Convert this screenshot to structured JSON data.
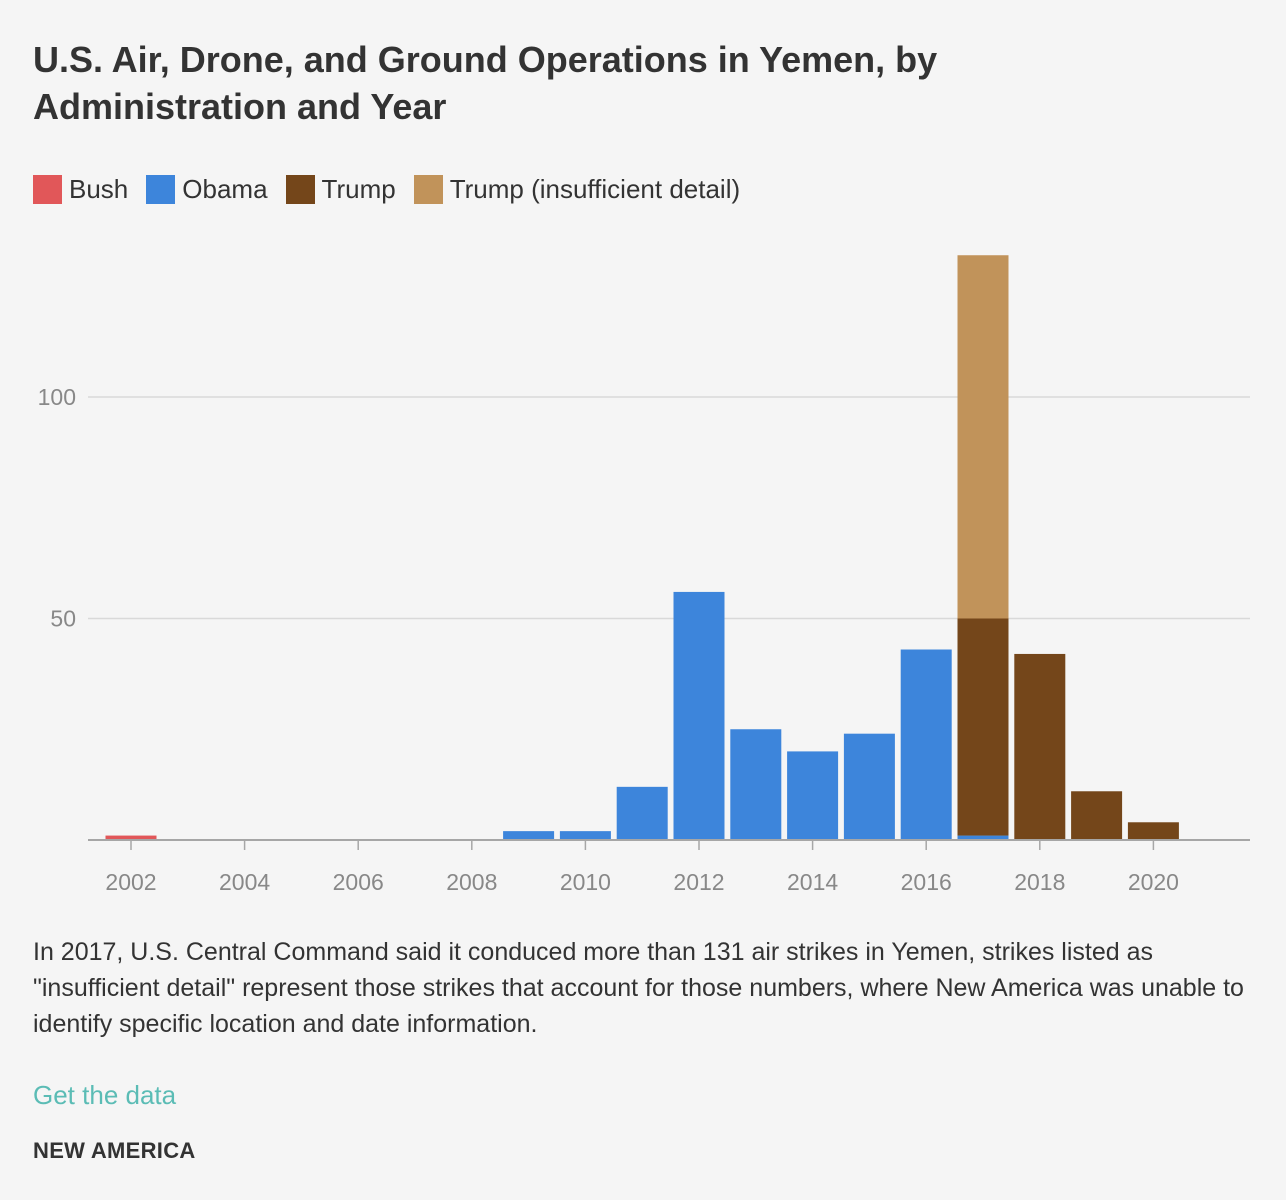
{
  "chart_data": {
    "type": "bar",
    "stacked": true,
    "title": "U.S. Air, Drone, and Ground Operations in Yemen, by Administration and Year",
    "x": [
      2002,
      2003,
      2004,
      2005,
      2006,
      2007,
      2008,
      2009,
      2010,
      2011,
      2012,
      2013,
      2014,
      2015,
      2016,
      2017,
      2018,
      2019,
      2020
    ],
    "series": [
      {
        "name": "Bush",
        "color": "#e15759",
        "values": [
          1,
          0,
          0,
          0,
          0,
          0,
          0,
          0,
          0,
          0,
          0,
          0,
          0,
          0,
          0,
          0,
          0,
          0,
          0
        ]
      },
      {
        "name": "Obama",
        "color": "#3d85db",
        "values": [
          0,
          0,
          0,
          0,
          0,
          0,
          0,
          2,
          2,
          12,
          56,
          25,
          20,
          24,
          43,
          1,
          0,
          0,
          0
        ]
      },
      {
        "name": "Trump",
        "color": "#74461a",
        "values": [
          0,
          0,
          0,
          0,
          0,
          0,
          0,
          0,
          0,
          0,
          0,
          0,
          0,
          0,
          0,
          49,
          42,
          11,
          4
        ]
      },
      {
        "name": "Trump (insufficient detail)",
        "color": "#c1935a",
        "values": [
          0,
          0,
          0,
          0,
          0,
          0,
          0,
          0,
          0,
          0,
          0,
          0,
          0,
          0,
          0,
          82,
          0,
          0,
          0
        ]
      }
    ],
    "x_ticks": [
      "2002",
      "2004",
      "2006",
      "2008",
      "2010",
      "2012",
      "2014",
      "2016",
      "2018",
      "2020"
    ],
    "y_ticks": [
      "50",
      "100"
    ],
    "ylim": [
      0,
      135
    ],
    "xlabel": "",
    "ylabel": "",
    "grid": true,
    "legend_position": "top-left"
  },
  "caption": "In 2017, U.S. Central Command said it conduced more than 131 air strikes in Yemen, strikes listed as \"insufficient detail\" represent those strikes that account for those numbers, where New America was unable to identify specific location and date information.",
  "link_text": "Get the data",
  "source": "NEW AMERICA"
}
